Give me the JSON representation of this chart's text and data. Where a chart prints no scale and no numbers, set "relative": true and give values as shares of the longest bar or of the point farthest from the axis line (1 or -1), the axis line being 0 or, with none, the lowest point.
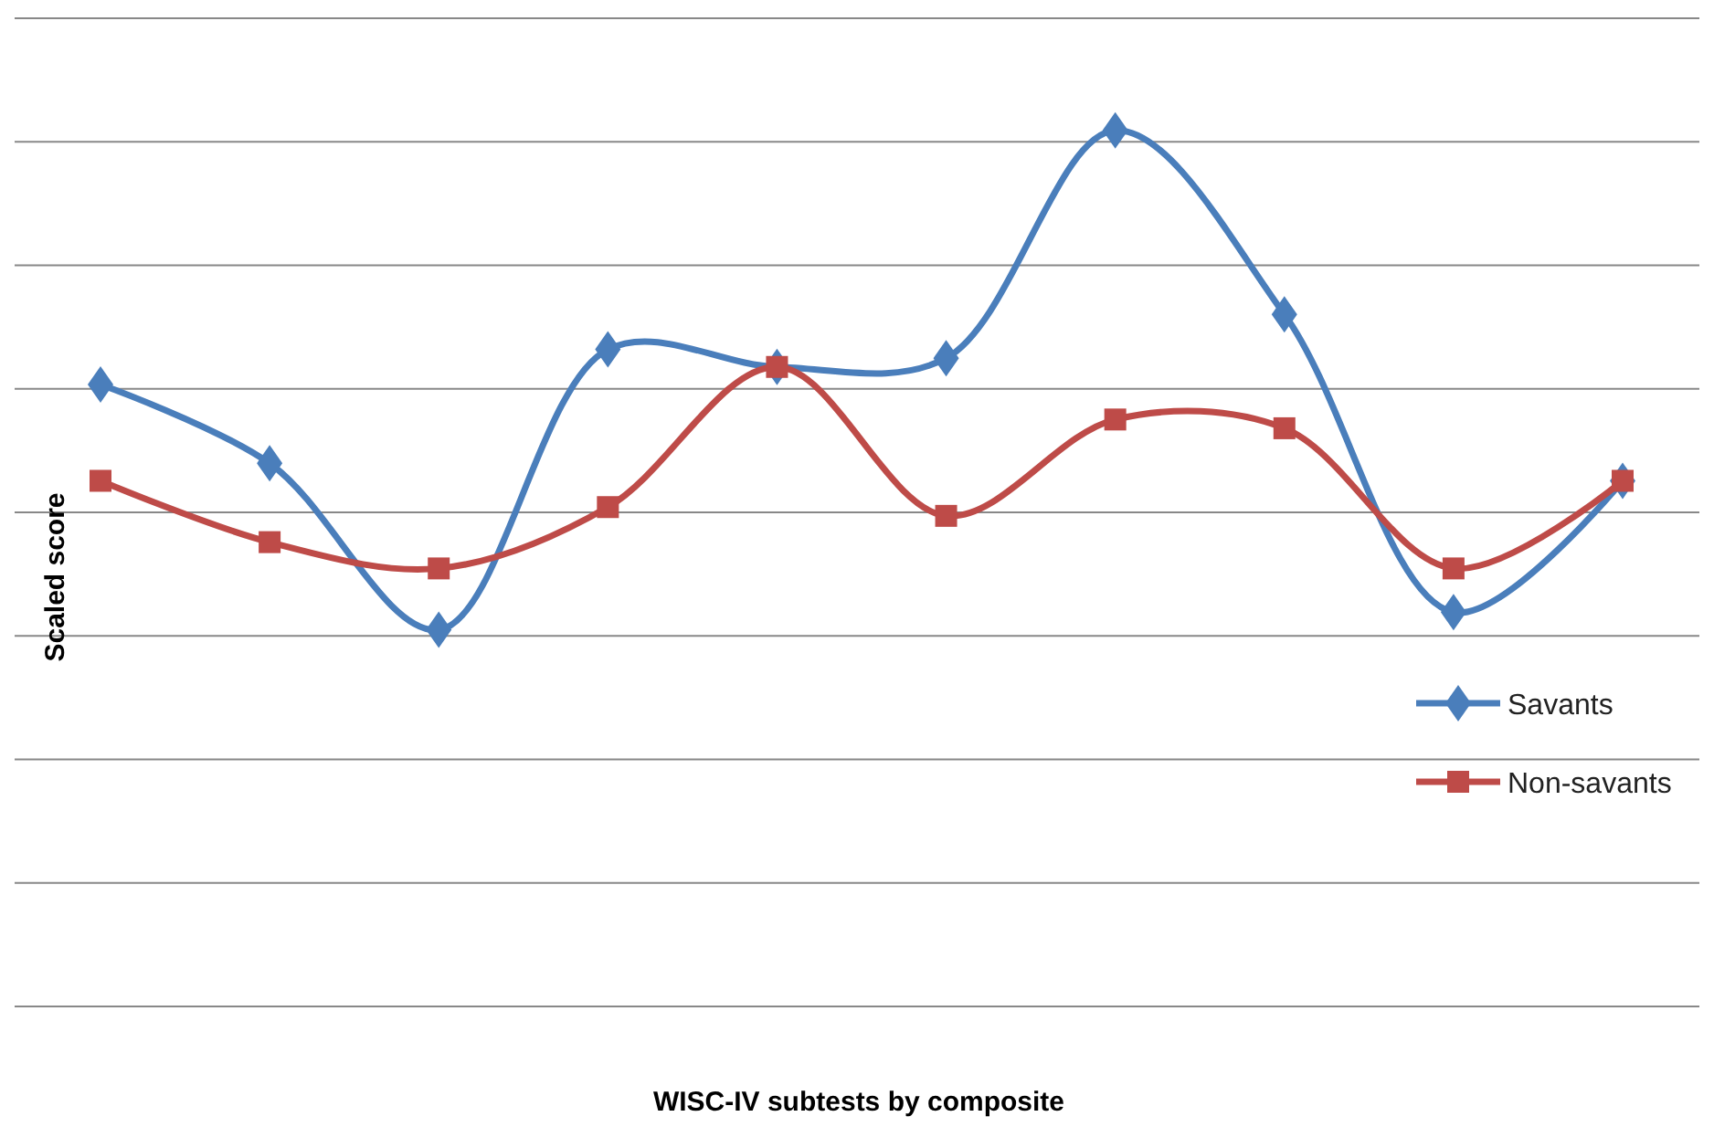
{
  "chart_data": {
    "type": "line",
    "relative": true,
    "xlabel": "WISC-IV  subtests by composite",
    "ylabel": "Scaled score",
    "categories": [
      null,
      null,
      null,
      null,
      null,
      null,
      null,
      null,
      null,
      null
    ],
    "grid": true,
    "legend": "right",
    "line_style": "solid",
    "series": [
      {
        "name": "Savants",
        "color": "#4a7ebb",
        "marker": "diamond",
        "values": [
          0.71,
          0.62,
          0.43,
          0.75,
          0.73,
          0.74,
          1.0,
          0.79,
          0.45,
          0.6
        ]
      },
      {
        "name": "Non-savants",
        "color": "#be4b48",
        "marker": "square",
        "values": [
          0.6,
          0.53,
          0.5,
          0.57,
          0.73,
          0.56,
          0.67,
          0.66,
          0.5,
          0.6
        ]
      }
    ]
  }
}
